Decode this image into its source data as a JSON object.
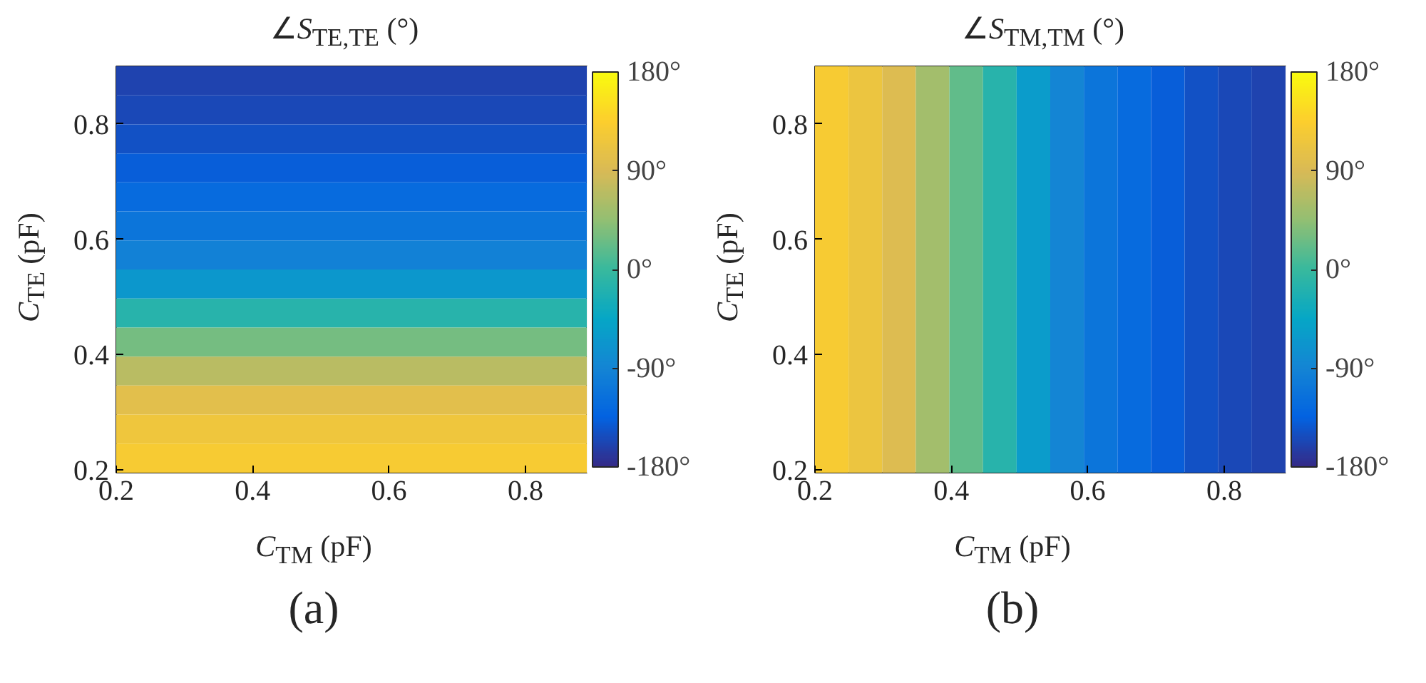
{
  "chart_data": [
    {
      "type": "heatmap",
      "title": "∠S$_{TE,TE}$ (°)",
      "xlabel": "C$_{TM}$ (pF)",
      "ylabel": "C$_{TE}$ (pF)",
      "cells": [
        [
          -160
        ],
        [
          -155
        ],
        [
          -148
        ],
        [
          -138
        ],
        [
          -125
        ],
        [
          -110
        ],
        [
          -95
        ],
        [
          -65
        ],
        [
          -15
        ],
        [
          30
        ],
        [
          70
        ],
        [
          100
        ],
        [
          118
        ],
        [
          128
        ]
      ],
      "xlim": [
        0.2,
        0.89
      ],
      "xticks": [
        0.2,
        0.4,
        0.6,
        0.8
      ],
      "ylim": [
        0.195,
        0.9
      ],
      "yticks": [
        0.2,
        0.4,
        0.6,
        0.8
      ],
      "clim": [
        -180,
        180
      ],
      "cticks": [
        {
          "value": -180,
          "label": "-180°"
        },
        {
          "value": -90,
          "label": "-90°"
        },
        {
          "value": 0,
          "label": "0°"
        },
        {
          "value": 90,
          "label": "90°"
        },
        {
          "value": 180,
          "label": "180°"
        }
      ],
      "annotations": [
        "(a)"
      ]
    },
    {
      "type": "heatmap",
      "title": "∠S$_{TM,TM}$ (°)",
      "xlabel": "C$_{TM}$ (pF)",
      "ylabel": "C$_{TE}$ (pF)",
      "cells": [
        [
          128,
          115,
          95,
          55,
          20,
          -15,
          -60,
          -90,
          -110,
          -125,
          -138,
          -148,
          -155,
          -160
        ]
      ],
      "xlim": [
        0.2,
        0.89
      ],
      "xticks": [
        0.2,
        0.4,
        0.6,
        0.8
      ],
      "ylim": [
        0.195,
        0.9
      ],
      "yticks": [
        0.2,
        0.4,
        0.6,
        0.8
      ],
      "clim": [
        -180,
        180
      ],
      "cticks": [
        {
          "value": -180,
          "label": "-180°"
        },
        {
          "value": -90,
          "label": "-90°"
        },
        {
          "value": 0,
          "label": "0°"
        },
        {
          "value": 90,
          "label": "90°"
        },
        {
          "value": 180,
          "label": "180°"
        }
      ],
      "annotations": [
        "(b)"
      ]
    }
  ]
}
